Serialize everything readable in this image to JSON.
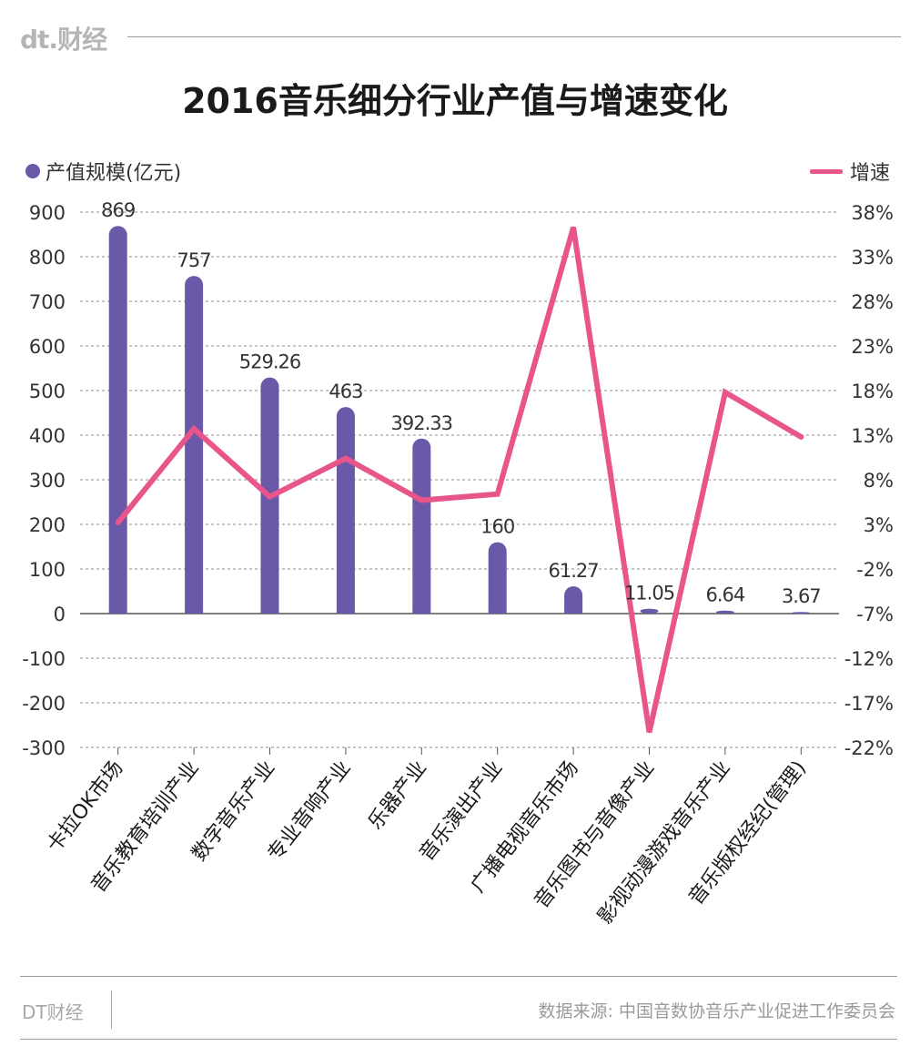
{
  "header": {
    "logo_text": "dt.财经"
  },
  "title": "2016音乐细分行业产值与增速变化",
  "legend": {
    "bar_label": "产值规模(亿元)",
    "line_label": "增速"
  },
  "footer": {
    "brand": "DT财经",
    "source": "数据来源: 中国音数协音乐产业促进工作委员会"
  },
  "colors": {
    "bar": "#6a58a8",
    "line": "#e8558a",
    "grid": "#8c8c8c"
  },
  "chart_data": {
    "type": "bar",
    "categories": [
      "卡拉OK市场",
      "音乐教育培训产业",
      "数字音乐产业",
      "专业音响产业",
      "乐器产业",
      "音乐演出产业",
      "广播电视音乐市场",
      "音乐图书与音像产业",
      "影视动漫游戏音乐产业",
      "音乐版权经纪(管理)"
    ],
    "series": [
      {
        "name": "产值规模(亿元)",
        "type": "bar",
        "axis": "left",
        "values": [
          869,
          757,
          529.26,
          463,
          392.33,
          160,
          61.27,
          11.05,
          6.64,
          3.67
        ]
      },
      {
        "name": "增速",
        "type": "line",
        "axis": "right",
        "values": [
          3.2,
          13.7,
          6.1,
          10.4,
          5.7,
          6.4,
          36.3,
          -20.3,
          17.8,
          12.8
        ]
      }
    ],
    "bar_labels": [
      "869",
      "757",
      "529.26",
      "463",
      "392.33",
      "160",
      "61.27",
      "11.05",
      "6.64",
      "3.67"
    ],
    "ylim_left": [
      -300,
      900
    ],
    "yticks_left": [
      "900",
      "800",
      "700",
      "600",
      "500",
      "400",
      "300",
      "200",
      "100",
      "0",
      "-100",
      "-200",
      "-300"
    ],
    "ylim_right": [
      -22,
      38
    ],
    "yticks_right": [
      "38%",
      "33%",
      "28%",
      "23%",
      "18%",
      "13%",
      "8%",
      "3%",
      "-2%",
      "-7%",
      "-12%",
      "-17%",
      "-22%"
    ],
    "grid": true,
    "legend_position": "top"
  }
}
